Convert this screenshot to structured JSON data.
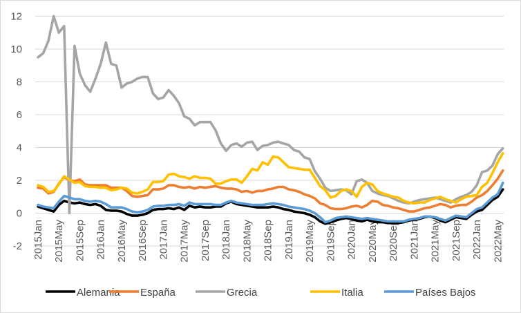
{
  "chart_data": {
    "type": "line",
    "title": "",
    "xlabel": "",
    "ylabel": "",
    "ylim": [
      -2,
      12
    ],
    "yticks": [
      -2,
      0,
      2,
      4,
      6,
      8,
      10,
      12
    ],
    "ytick_labels": [
      "-2",
      "0",
      "2",
      "4",
      "6",
      "8",
      "10",
      "12"
    ],
    "grid": "horizontal",
    "legend_position": "bottom",
    "x_tick_labels": [
      "2015Jan",
      "2015May",
      "2015Sep",
      "2016Jan",
      "2016May",
      "2016Sep",
      "2017Jan",
      "2017May",
      "2017Sep",
      "2018Jan",
      "2018May",
      "2018Sep",
      "2019Jan",
      "2019May",
      "2019Sep",
      "2020Jan",
      "2020May",
      "2020Sep",
      "2021Jan",
      "2021May",
      "2021Sep",
      "2022Jan",
      "2022May"
    ],
    "x_tick_every_months": 4,
    "x_start": "2015Jan",
    "x_end": "2022Jun",
    "series": [
      {
        "name": "Alemania",
        "color": "#000000",
        "values": [
          0.4,
          0.3,
          0.2,
          0.1,
          0.5,
          0.75,
          0.65,
          0.6,
          0.65,
          0.55,
          0.5,
          0.55,
          0.45,
          0.2,
          0.15,
          0.15,
          0.1,
          -0.05,
          -0.15,
          -0.15,
          -0.1,
          0.0,
          0.2,
          0.25,
          0.25,
          0.3,
          0.25,
          0.35,
          0.2,
          0.45,
          0.35,
          0.4,
          0.35,
          0.35,
          0.4,
          0.4,
          0.6,
          0.7,
          0.55,
          0.5,
          0.45,
          0.4,
          0.35,
          0.35,
          0.35,
          0.4,
          0.35,
          0.25,
          0.2,
          0.1,
          0.05,
          0.0,
          -0.1,
          -0.25,
          -0.5,
          -0.65,
          -0.55,
          -0.45,
          -0.35,
          -0.3,
          -0.35,
          -0.45,
          -0.5,
          -0.4,
          -0.5,
          -0.55,
          -0.55,
          -0.6,
          -0.6,
          -0.6,
          -0.55,
          -0.45,
          -0.4,
          -0.35,
          -0.25,
          -0.2,
          -0.3,
          -0.45,
          -0.55,
          -0.4,
          -0.25,
          -0.3,
          -0.35,
          -0.1,
          0.1,
          0.2,
          0.5,
          0.8,
          1.0,
          1.45
        ]
      },
      {
        "name": "España",
        "color": "#ed7d31",
        "values": [
          1.55,
          1.5,
          1.2,
          1.3,
          1.8,
          2.2,
          2.0,
          1.95,
          2.05,
          1.75,
          1.7,
          1.7,
          1.7,
          1.7,
          1.55,
          1.55,
          1.55,
          1.35,
          1.05,
          1.0,
          1.05,
          1.1,
          1.45,
          1.45,
          1.5,
          1.7,
          1.7,
          1.6,
          1.55,
          1.6,
          1.5,
          1.6,
          1.55,
          1.6,
          1.65,
          1.55,
          1.5,
          1.5,
          1.45,
          1.3,
          1.35,
          1.25,
          1.35,
          1.35,
          1.45,
          1.5,
          1.6,
          1.6,
          1.45,
          1.4,
          1.3,
          1.15,
          1.05,
          0.9,
          0.6,
          0.5,
          0.3,
          0.25,
          0.25,
          0.3,
          0.4,
          0.45,
          0.35,
          0.5,
          0.75,
          0.7,
          0.5,
          0.45,
          0.35,
          0.3,
          0.2,
          0.1,
          0.1,
          0.2,
          0.3,
          0.35,
          0.45,
          0.55,
          0.5,
          0.35,
          0.45,
          0.5,
          0.5,
          0.7,
          0.95,
          1.1,
          1.35,
          1.7,
          2.1,
          2.6
        ]
      },
      {
        "name": "Grecia",
        "color": "#a5a5a5",
        "values": [
          9.5,
          9.75,
          10.5,
          12.0,
          11.0,
          11.4,
          0.0,
          10.2,
          8.5,
          7.8,
          7.4,
          8.2,
          9.1,
          10.4,
          9.1,
          9.0,
          7.65,
          7.9,
          8.0,
          8.2,
          8.3,
          8.3,
          7.3,
          6.95,
          7.05,
          7.5,
          7.15,
          6.7,
          5.9,
          5.75,
          5.35,
          5.55,
          5.55,
          5.55,
          5.05,
          4.25,
          3.8,
          4.15,
          4.25,
          4.05,
          4.3,
          4.35,
          3.85,
          4.1,
          4.15,
          4.3,
          4.35,
          4.25,
          4.15,
          3.85,
          3.75,
          3.4,
          3.3,
          2.55,
          2.1,
          1.55,
          1.35,
          1.4,
          1.45,
          1.4,
          1.15,
          1.95,
          2.05,
          1.85,
          1.35,
          1.2,
          1.1,
          1.05,
          0.9,
          0.75,
          0.65,
          0.6,
          0.7,
          0.8,
          0.85,
          0.9,
          0.95,
          0.85,
          0.75,
          0.65,
          0.85,
          1.0,
          1.1,
          1.3,
          1.7,
          2.5,
          2.6,
          2.9,
          3.6,
          3.95
        ]
      },
      {
        "name": "Italia",
        "color": "#ffc000",
        "values": [
          1.7,
          1.6,
          1.3,
          1.35,
          1.75,
          2.25,
          2.05,
          1.85,
          1.9,
          1.65,
          1.6,
          1.6,
          1.55,
          1.55,
          1.4,
          1.45,
          1.55,
          1.5,
          1.25,
          1.2,
          1.3,
          1.45,
          1.9,
          1.9,
          1.95,
          2.35,
          2.4,
          2.25,
          2.2,
          2.1,
          2.25,
          2.15,
          2.15,
          2.1,
          1.8,
          1.8,
          1.95,
          2.05,
          2.05,
          1.85,
          2.25,
          2.7,
          2.6,
          3.1,
          2.95,
          3.45,
          3.4,
          3.1,
          2.8,
          2.75,
          2.7,
          2.65,
          2.65,
          2.15,
          1.65,
          1.4,
          0.95,
          1.05,
          1.35,
          1.45,
          1.35,
          1.0,
          1.6,
          1.85,
          1.75,
          1.35,
          1.2,
          1.1,
          1.0,
          0.95,
          0.75,
          0.65,
          0.6,
          0.65,
          0.65,
          0.8,
          0.9,
          1.0,
          0.85,
          0.75,
          0.65,
          0.85,
          1.0,
          1.05,
          1.1,
          1.6,
          1.85,
          2.45,
          3.1,
          3.65
        ]
      },
      {
        "name": "Países Bajos",
        "color": "#5b9bd5",
        "values": [
          0.5,
          0.4,
          0.35,
          0.3,
          0.7,
          1.05,
          0.95,
          0.85,
          0.85,
          0.75,
          0.7,
          0.75,
          0.7,
          0.55,
          0.35,
          0.35,
          0.35,
          0.25,
          0.1,
          0.05,
          0.1,
          0.2,
          0.4,
          0.45,
          0.45,
          0.5,
          0.5,
          0.55,
          0.45,
          0.65,
          0.55,
          0.55,
          0.55,
          0.55,
          0.5,
          0.5,
          0.65,
          0.75,
          0.65,
          0.6,
          0.55,
          0.5,
          0.5,
          0.5,
          0.55,
          0.6,
          0.55,
          0.5,
          0.4,
          0.35,
          0.3,
          0.25,
          0.15,
          0.0,
          -0.25,
          -0.55,
          -0.45,
          -0.3,
          -0.25,
          -0.2,
          -0.25,
          -0.3,
          -0.35,
          -0.3,
          -0.35,
          -0.4,
          -0.45,
          -0.5,
          -0.5,
          -0.5,
          -0.5,
          -0.4,
          -0.35,
          -0.3,
          -0.2,
          -0.2,
          -0.25,
          -0.35,
          -0.45,
          -0.3,
          -0.15,
          -0.2,
          -0.25,
          0.0,
          0.25,
          0.35,
          0.65,
          0.95,
          1.15,
          1.85
        ]
      }
    ]
  }
}
